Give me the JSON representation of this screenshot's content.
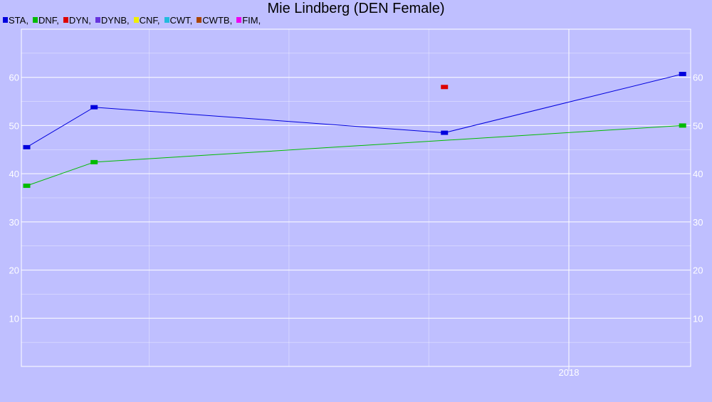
{
  "chart_data": {
    "type": "line",
    "title": "Mie Lindberg (DEN Female)",
    "xlabel": "",
    "ylabel": "",
    "ylim": [
      0,
      70
    ],
    "yticks": [
      10,
      20,
      30,
      40,
      50,
      60
    ],
    "xlim": [
      "2014-02-01",
      "2018-11-15"
    ],
    "xticks": [
      {
        "label": "2018",
        "value": "2018-01-01"
      }
    ],
    "grid": true,
    "legend_position": "top-left",
    "legend": [
      {
        "name": "STA",
        "label": "STA,",
        "color": "#0000dd"
      },
      {
        "name": "DNF",
        "label": "DNF,",
        "color": "#00bb00"
      },
      {
        "name": "DYN",
        "label": "DYN,",
        "color": "#dd0000"
      },
      {
        "name": "DYNB",
        "label": "DYNB,",
        "color": "#6633dd"
      },
      {
        "name": "CNF",
        "label": "CNF,",
        "color": "#eeee00"
      },
      {
        "name": "CWT",
        "label": "CWT,",
        "color": "#22bbdd"
      },
      {
        "name": "CWTB",
        "label": "CWTB,",
        "color": "#aa4400"
      },
      {
        "name": "FIM",
        "label": "FIM,",
        "color": "#ee00ee"
      }
    ],
    "series": [
      {
        "name": "STA",
        "color": "#0000dd",
        "line": true,
        "points": [
          [
            "2014-02-15",
            45.5
          ],
          [
            "2014-08-10",
            53.8
          ],
          [
            "2017-02-10",
            48.5
          ],
          [
            "2018-10-25",
            60.7
          ]
        ]
      },
      {
        "name": "DNF",
        "color": "#00bb00",
        "line": true,
        "points": [
          [
            "2014-02-15",
            37.5
          ],
          [
            "2014-08-10",
            42.4
          ],
          [
            "2018-10-25",
            50.0
          ]
        ]
      },
      {
        "name": "DYN",
        "color": "#dd0000",
        "line": false,
        "points": [
          [
            "2017-02-10",
            58.0
          ]
        ]
      }
    ]
  }
}
